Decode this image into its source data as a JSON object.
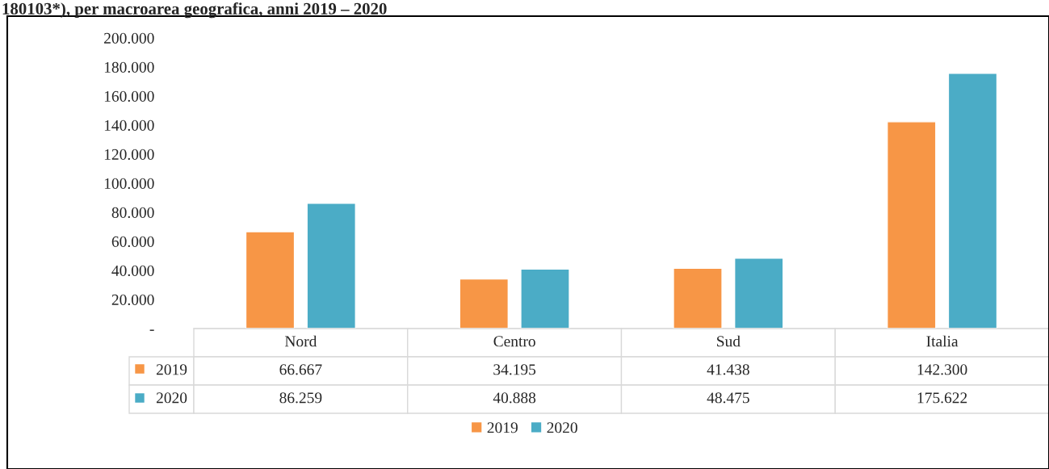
{
  "chart_data": {
    "type": "bar",
    "title": "180103*), per macroarea geografica, anni 2019 – 2020",
    "categories": [
      "Nord",
      "Centro",
      "Sud",
      "Italia"
    ],
    "series": [
      {
        "name": "2019",
        "color": "#f79646",
        "values": [
          66667,
          34195,
          41438,
          142300
        ],
        "value_labels": [
          "66.667",
          "34.195",
          "41.438",
          "142.300"
        ]
      },
      {
        "name": "2020",
        "color": "#4bacc6",
        "values": [
          86259,
          40888,
          48475,
          175622
        ],
        "value_labels": [
          "86.259",
          "40.888",
          "48.475",
          "175.622"
        ]
      }
    ],
    "ylim": [
      0,
      200000
    ],
    "yticks": [
      {
        "value": 0,
        "label": "-"
      },
      {
        "value": 20000,
        "label": "20.000"
      },
      {
        "value": 40000,
        "label": "40.000"
      },
      {
        "value": 60000,
        "label": "60.000"
      },
      {
        "value": 80000,
        "label": "80.000"
      },
      {
        "value": 100000,
        "label": "100.000"
      },
      {
        "value": 120000,
        "label": "120.000"
      },
      {
        "value": 140000,
        "label": "140.000"
      },
      {
        "value": 160000,
        "label": "160.000"
      },
      {
        "value": 180000,
        "label": "180.000"
      },
      {
        "value": 200000,
        "label": "200.000"
      }
    ],
    "legend": "bottom",
    "grid": false
  }
}
